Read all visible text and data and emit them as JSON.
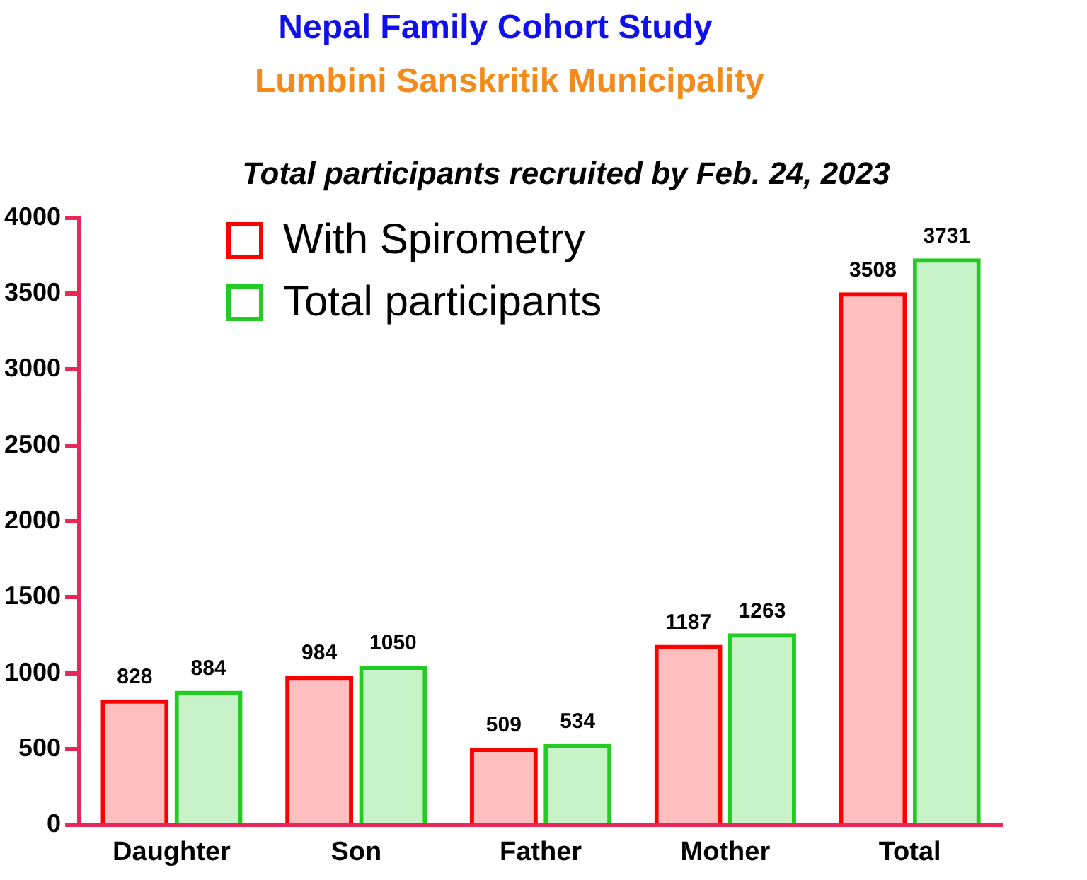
{
  "chart_data": {
    "type": "bar",
    "title": "Nepal Family Cohort Study",
    "subtitle": "Lumbini Sanskritik Municipality",
    "annotations": [
      "Total participants recruited by Feb. 24, 2023"
    ],
    "categories": [
      "Daughter",
      "Son",
      "Father",
      "Mother",
      "Total"
    ],
    "series": [
      {
        "name": "With Spirometry",
        "color": "#ff0000",
        "values": [
          828,
          984,
          509,
          1187,
          3508
        ]
      },
      {
        "name": "Total participants",
        "color": "#22cc22",
        "values": [
          884,
          1050,
          534,
          1263,
          3731
        ]
      }
    ],
    "ylim": [
      0,
      4000
    ],
    "yticks": [
      0,
      500,
      1000,
      1500,
      2000,
      2500,
      3000,
      3500,
      4000
    ],
    "grid": false,
    "legend": "top left",
    "data_labels": true
  }
}
